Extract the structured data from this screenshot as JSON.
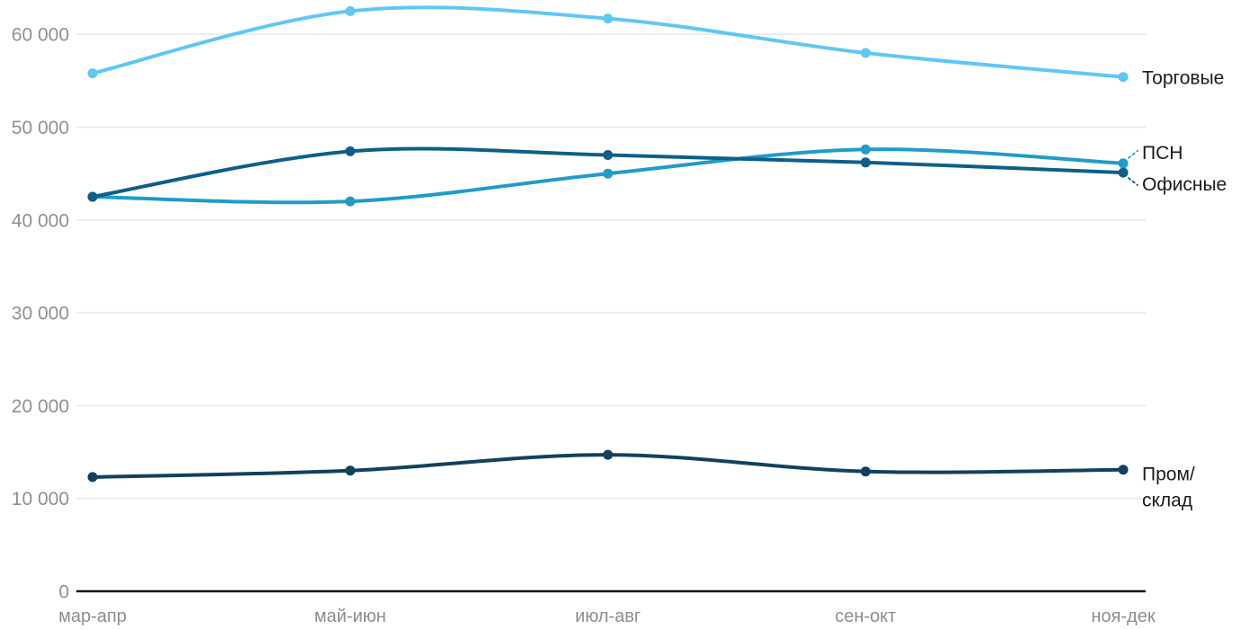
{
  "chart_data": {
    "type": "line",
    "categories": [
      "мар-апр",
      "май-июн",
      "июл-авг",
      "сен-окт",
      "ноя-дек"
    ],
    "series": [
      {
        "name": "Торговые",
        "label_lines": [
          "Торговые"
        ],
        "color": "#5FC8F2",
        "values": [
          55800,
          62500,
          61700,
          58000,
          55400
        ]
      },
      {
        "name": "ПСН",
        "label_lines": [
          "ПСН"
        ],
        "color": "#1F9CC9",
        "values": [
          42500,
          42000,
          45000,
          47600,
          46100
        ]
      },
      {
        "name": "Офисные",
        "label_lines": [
          "Офисные"
        ],
        "color": "#0D5F89",
        "values": [
          42500,
          47400,
          47000,
          46200,
          45100
        ]
      },
      {
        "name": "Пром/склад",
        "label_lines": [
          "Пром/",
          "склад"
        ],
        "color": "#12415F",
        "values": [
          12300,
          13000,
          14700,
          12900,
          13100
        ]
      }
    ],
    "y_axis": {
      "min": 0,
      "max": 63600,
      "tick_values": [
        0,
        10000,
        20000,
        30000,
        40000,
        50000,
        60000
      ],
      "tick_labels": [
        "0",
        "10 000",
        "20 000",
        "30 000",
        "40 000",
        "50 000",
        "60 000"
      ]
    },
    "grid": "horizontal",
    "legend_position": "labels-right-of-line-ends",
    "label_leader_series": [
      "ПСН",
      "Офисные"
    ]
  },
  "colors": {
    "background": "#ffffff",
    "grid": "#e7e7e7",
    "axis": "#141414",
    "tick_text": "#8d8d8d",
    "series_label_text": "#1b1b1b"
  }
}
